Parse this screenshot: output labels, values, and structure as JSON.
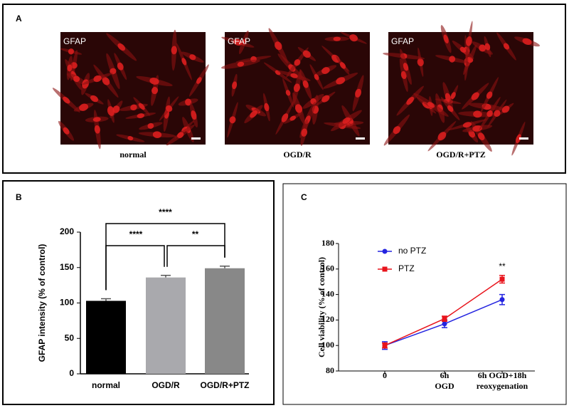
{
  "panel_a": {
    "label": "A",
    "images": [
      {
        "stain": "GFAP",
        "caption": "normal"
      },
      {
        "stain": "GFAP",
        "caption": "OGD/R"
      },
      {
        "stain": "GFAP",
        "caption": "OGD/R+PTZ"
      }
    ]
  },
  "chart_data": [
    {
      "type": "bar",
      "panel_label": "B",
      "y_label": "GFAP intensity (% of control)",
      "categories": [
        "normal",
        "OGD/R",
        "OGD/R+PTZ"
      ],
      "values": [
        103,
        136,
        149
      ],
      "errors": [
        3,
        3,
        3
      ],
      "colors": [
        "#000000",
        "#a9a9ad",
        "#888888"
      ],
      "ylim": [
        0,
        200
      ],
      "yticks": [
        0,
        50,
        100,
        150,
        200
      ],
      "annotations": [
        {
          "text": "****",
          "between": [
            "normal",
            "OGD/R+PTZ"
          ]
        },
        {
          "text": "****",
          "between": [
            "normal",
            "OGD/R"
          ]
        },
        {
          "text": "**",
          "between": [
            "OGD/R",
            "OGD/R+PTZ"
          ]
        }
      ]
    },
    {
      "type": "line",
      "panel_label": "C",
      "y_label": "Cell viability (% of control)",
      "categories": [
        [
          "0"
        ],
        [
          "6h",
          "OGD"
        ],
        [
          "6h OGD+18h",
          "reoxygenation"
        ]
      ],
      "ylim": [
        80,
        180
      ],
      "yticks": [
        80,
        100,
        120,
        140,
        160,
        180
      ],
      "legend": "upper left",
      "series": [
        {
          "name": "no PTZ",
          "color": "#2424e0",
          "values": [
            100,
            117,
            136
          ],
          "errors": [
            3,
            3,
            4
          ]
        },
        {
          "name": "PTZ",
          "color": "#e8141c",
          "values": [
            100,
            121,
            152
          ],
          "errors": [
            2,
            2,
            3
          ]
        }
      ],
      "annotations": [
        {
          "text": "**",
          "category": 2
        }
      ]
    }
  ]
}
